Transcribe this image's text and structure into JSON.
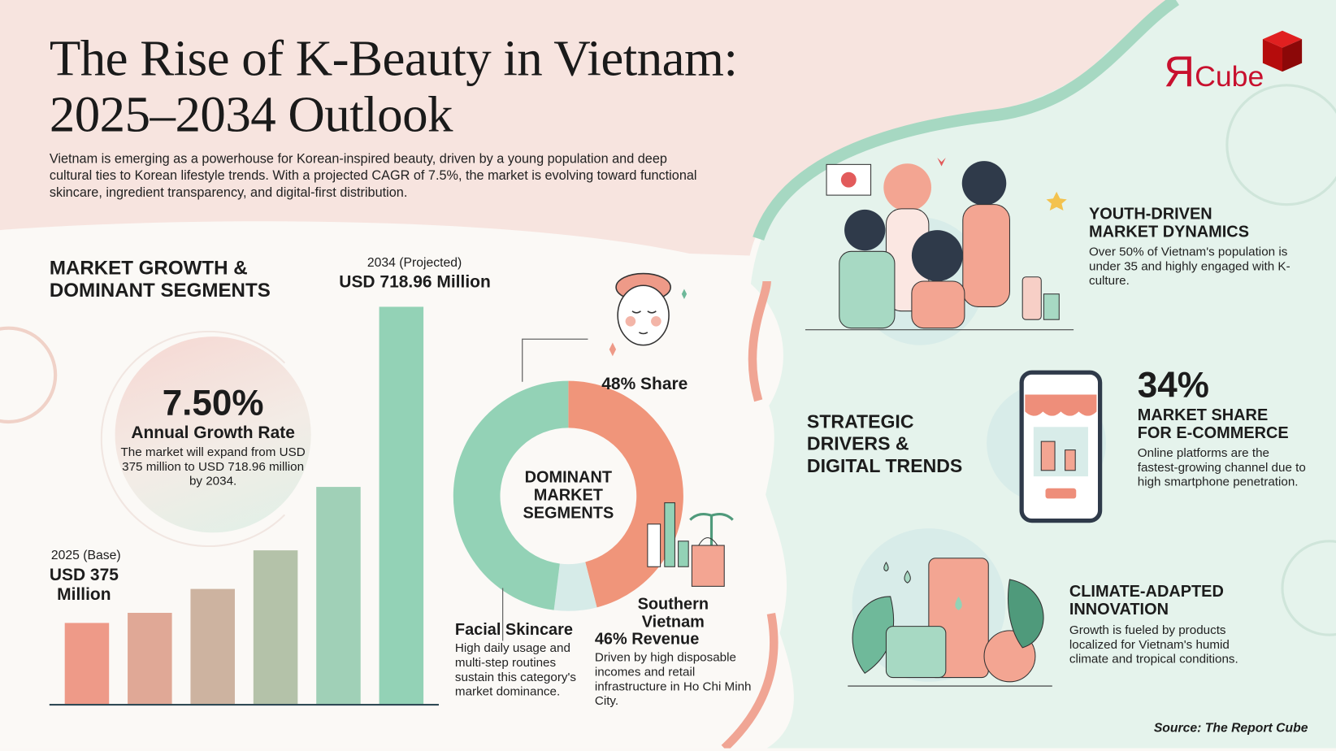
{
  "header": {
    "title_line1": "The Rise of K-Beauty in Vietnam:",
    "title_line2": "2025–2034 Outlook",
    "intro": "Vietnam is emerging as a powerhouse for Korean-inspired beauty, driven by a young population and deep cultural ties to Korean lifestyle trends. With a projected CAGR of 7.5%, the market is evolving toward functional skincare, ingredient transparency, and digital-first distribution."
  },
  "logo": {
    "text_mark": "Я",
    "text": "Cube",
    "color": "#c8102e"
  },
  "market_growth": {
    "heading_line1": "MARKET GROWTH &",
    "heading_line2": "DOMINANT SEGMENTS",
    "rate_value": "7.50%",
    "rate_label": "Annual Growth Rate",
    "rate_desc": "The market will expand from USD 375 million to USD 718.96 million by 2034.",
    "base_label": "2025 (Base)",
    "base_value_line1": "USD 375",
    "base_value_line2": "Million",
    "projected_label": "2034 (Projected)",
    "projected_value": "USD 718.96 Million"
  },
  "segments": {
    "center_line1": "DOMINANT",
    "center_line2": "MARKET",
    "center_line3": "SEGMENTS",
    "share_label": "48% Share",
    "facial_title": "Facial Skincare",
    "facial_desc": "High daily usage and multi-step routines sustain this category's market dominance.",
    "south_title_line1": "Southern",
    "south_title_line2": "Vietnam",
    "south_value": "46% Revenue",
    "south_desc": "Driven by high disposable incomes and retail infrastructure in Ho Chi Minh City."
  },
  "drivers": {
    "heading_line1": "STRATEGIC",
    "heading_line2": "DRIVERS &",
    "heading_line3": "DIGITAL TRENDS",
    "youth_title_line1": "YOUTH-DRIVEN",
    "youth_title_line2": "MARKET DYNAMICS",
    "youth_desc": "Over 50% of Vietnam's population is under 35 and highly engaged with K-culture.",
    "ecom_value": "34%",
    "ecom_title_line1": "MARKET SHARE",
    "ecom_title_line2": "FOR E-COMMERCE",
    "ecom_desc": "Online platforms are the fastest-growing channel due to high smartphone penetration.",
    "climate_title_line1": "CLIMATE-ADAPTED",
    "climate_title_line2": "INNOVATION",
    "climate_desc": "Growth is fueled by products localized for Vietnam's humid climate and tropical conditions."
  },
  "source": "Source: The Report Cube",
  "colors": {
    "coral": "#ee9a88",
    "mint": "#93d2b6",
    "pink_bg": "#f7e4df",
    "mint_bg": "#e5f3ec",
    "light_blue": "#d6ebe8"
  },
  "chart_data": [
    {
      "type": "bar",
      "unit": "USD Million",
      "values": [
        375,
        386,
        412,
        454,
        523,
        718.96
      ],
      "labels_printed": {
        "first": "2025 (Base) USD 375 Million",
        "last": "2034 (Projected) USD 718.96 Million"
      },
      "grid": false
    },
    {
      "type": "pie",
      "donut": true,
      "center_label": "DOMINANT MARKET SEGMENTS",
      "slices": [
        {
          "label": "Facial Skincare",
          "value": 48,
          "color": "#93d2b6"
        },
        {
          "label": "Southern Vietnam",
          "value": 46,
          "color": "#f0957a"
        },
        {
          "label": "",
          "value": 6,
          "color": "#d6ebe8"
        }
      ]
    }
  ]
}
